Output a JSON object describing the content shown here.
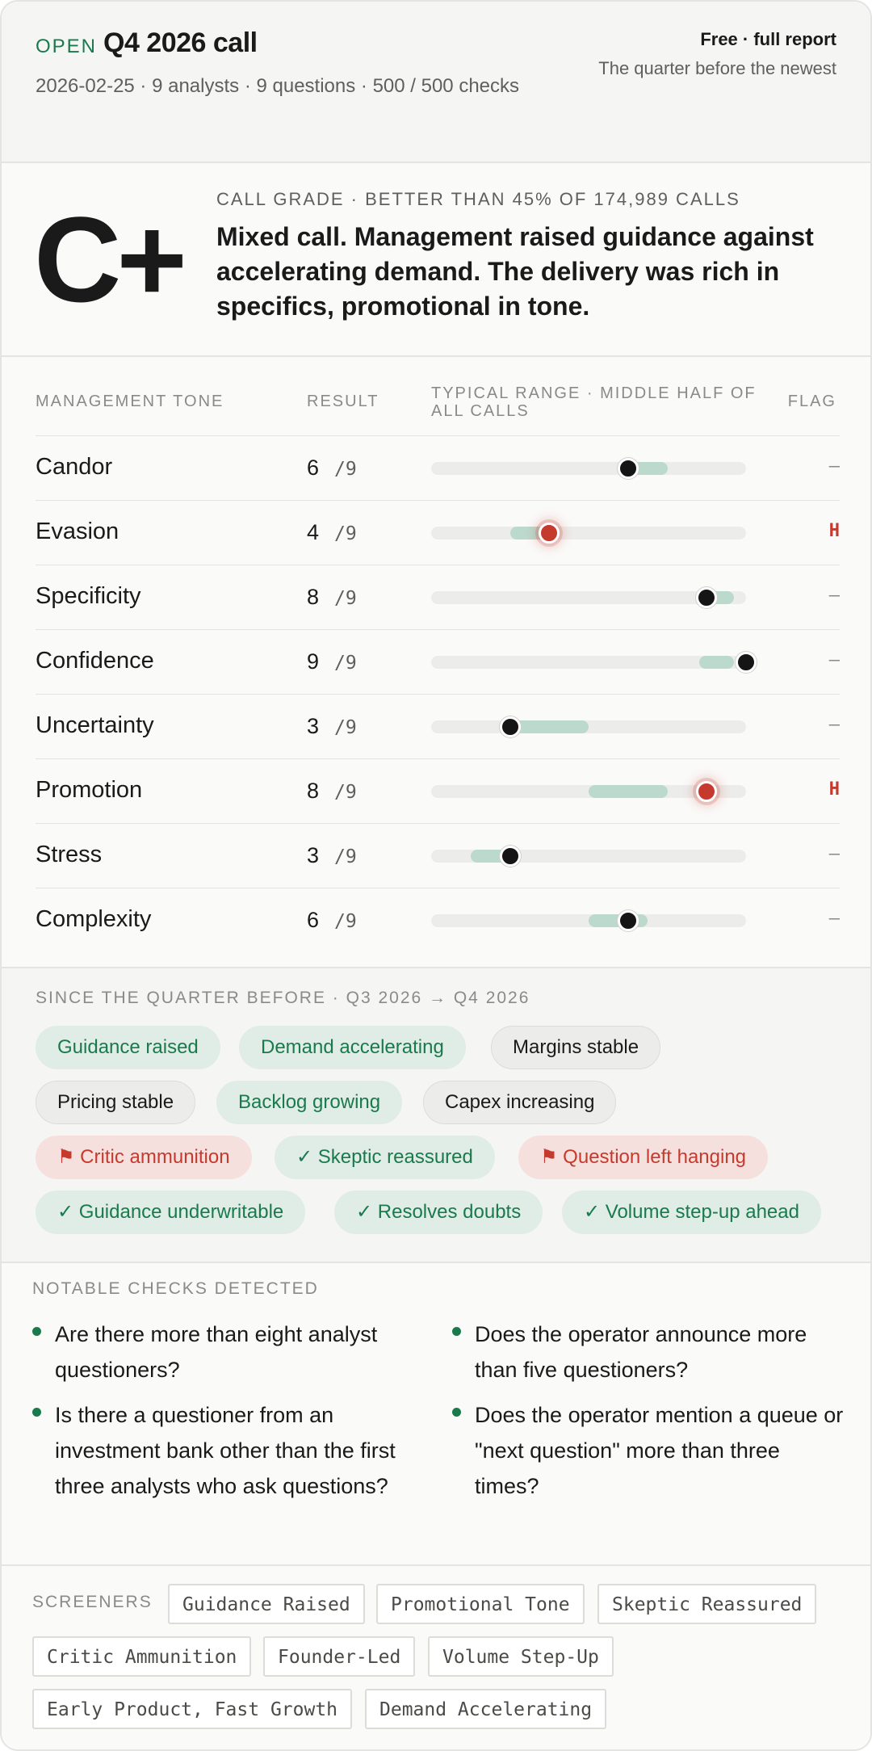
{
  "header": {
    "status": "OPEN",
    "title": "Q4 2026 call",
    "meta": "2026-02-25 · 9 analysts · 9 questions · 500 / 500 checks",
    "tier": "Free · full report",
    "tier_sub": "The quarter before the newest"
  },
  "grade": {
    "letter": "C+",
    "kicker": "CALL GRADE · BETTER THAN 45% OF 174,989 CALLS",
    "percentile": 45,
    "total_calls": 174989,
    "summary": "Mixed call. Management raised guidance against accelerating demand. The delivery was rich in specifics, promotional in tone."
  },
  "tone": {
    "headers": {
      "metric": "MANAGEMENT TONE",
      "result": "RESULT",
      "range": "TYPICAL RANGE · MIDDLE HALF OF ALL CALLS",
      "flag": "FLAG"
    },
    "scale_min": 1,
    "scale_max": 9,
    "rows": [
      {
        "name": "Candor",
        "value": "6",
        "of": "/9",
        "score": 6,
        "range_low": 6,
        "range_high": 7,
        "flag": "–",
        "high": false
      },
      {
        "name": "Evasion",
        "value": "4",
        "of": "/9",
        "score": 4,
        "range_low": 3,
        "range_high": 4,
        "flag": "H",
        "high": true
      },
      {
        "name": "Specificity",
        "value": "8",
        "of": "/9",
        "score": 8,
        "range_low": 7.8,
        "range_high": 8.7,
        "flag": "–",
        "high": false
      },
      {
        "name": "Confidence",
        "value": "9",
        "of": "/9",
        "score": 9,
        "range_low": 7.8,
        "range_high": 8.7,
        "flag": "–",
        "high": false
      },
      {
        "name": "Uncertainty",
        "value": "3",
        "of": "/9",
        "score": 3,
        "range_low": 3,
        "range_high": 5,
        "flag": "–",
        "high": false
      },
      {
        "name": "Promotion",
        "value": "8",
        "of": "/9",
        "score": 8,
        "range_low": 5,
        "range_high": 7,
        "flag": "H",
        "high": true
      },
      {
        "name": "Stress",
        "value": "3",
        "of": "/9",
        "score": 3,
        "range_low": 2,
        "range_high": 3,
        "flag": "–",
        "high": false
      },
      {
        "name": "Complexity",
        "value": "6",
        "of": "/9",
        "score": 6,
        "range_low": 5,
        "range_high": 6.5,
        "flag": "–",
        "high": false
      }
    ]
  },
  "changes": {
    "kicker": "SINCE THE QUARTER BEFORE · Q3 2026 → Q4 2026",
    "pills": [
      {
        "label": "Guidance raised",
        "tone": "green"
      },
      {
        "label": "Demand accelerating",
        "tone": "green"
      },
      {
        "label": "Margins stable",
        "tone": "grey"
      },
      {
        "label": "Pricing stable",
        "tone": "grey"
      },
      {
        "label": "Backlog growing",
        "tone": "green"
      },
      {
        "label": "Capex increasing",
        "tone": "grey"
      },
      {
        "label": "⚑ Critic ammunition",
        "tone": "red"
      },
      {
        "label": "✓ Skeptic reassured",
        "tone": "green"
      },
      {
        "label": "⚑ Question left hanging",
        "tone": "red"
      },
      {
        "label": "✓ Guidance underwritable",
        "tone": "green"
      },
      {
        "label": "✓ Resolves doubts",
        "tone": "green"
      },
      {
        "label": "✓ Volume step-up ahead",
        "tone": "green"
      }
    ]
  },
  "notable": {
    "kicker": "NOTABLE CHECKS DETECTED",
    "items": [
      "Are there more than eight analyst questioners?",
      "Is there a questioner from an investment bank other than the first three analysts who ask questions?",
      "Does the operator announce more than five questioners?",
      "Does the operator mention a queue or \"next question\" more than three times?"
    ]
  },
  "screeners": {
    "kicker": "SCREENERS",
    "tags": [
      "Guidance Raised",
      "Promotional Tone",
      "Skeptic Reassured",
      "Critic Ammunition",
      "Founder-Led",
      "Volume Step-Up",
      "Early Product, Fast Growth",
      "Demand Accelerating"
    ]
  },
  "colors": {
    "accent_green": "#1a7a4c",
    "band": "#bcd9cd",
    "alert_red": "#c63a2e",
    "track": "#ececea"
  }
}
